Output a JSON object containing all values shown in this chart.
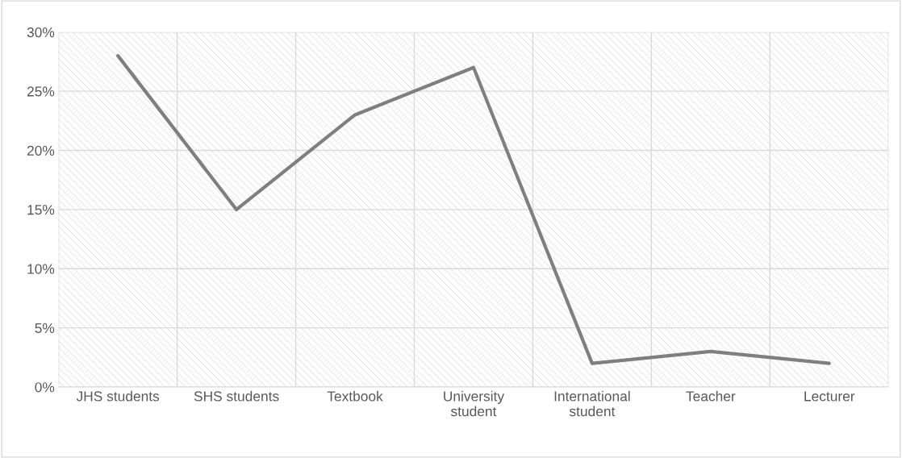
{
  "chart_data": {
    "type": "line",
    "categories": [
      "JHS students",
      "SHS students",
      "Textbook",
      "University\nstudent",
      "International\nstudent",
      "Teacher",
      "Lecturer"
    ],
    "series": [
      {
        "color": "#7f7f7f",
        "values": [
          28,
          15,
          23,
          27,
          2,
          3,
          2
        ]
      }
    ],
    "ylim": [
      0,
      30
    ],
    "yticks": [
      {
        "value": 0,
        "label": "0%"
      },
      {
        "value": 5,
        "label": "5%"
      },
      {
        "value": 10,
        "label": "10%"
      },
      {
        "value": 15,
        "label": "15%"
      },
      {
        "value": 20,
        "label": "20%"
      },
      {
        "value": 25,
        "label": "25%"
      },
      {
        "value": 30,
        "label": "30%"
      }
    ],
    "grid": true,
    "marker": "none",
    "line_style": "solid"
  }
}
